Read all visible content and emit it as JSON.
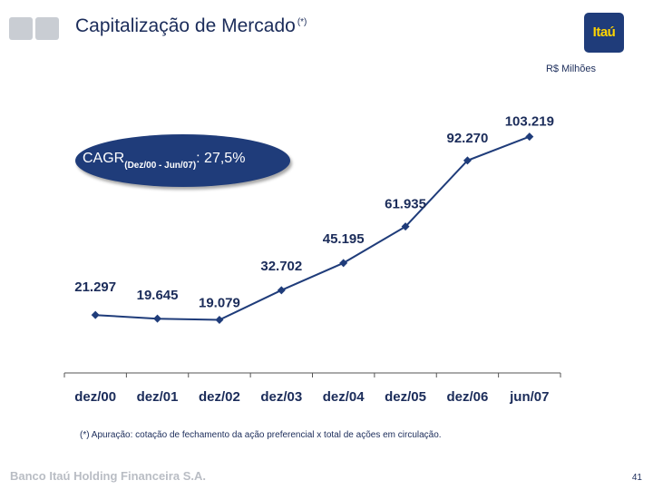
{
  "header": {
    "title": "Capitalização de Mercado",
    "title_note": "(*)",
    "logo_text": "Itaú"
  },
  "unit_label": "R$ Milhões",
  "cagr": {
    "label": "CAGR",
    "period": "(Dez/00 - Jun/07)",
    "value": ": 27,5%"
  },
  "chart_data": {
    "type": "line",
    "title": "",
    "xlabel": "",
    "ylabel": "",
    "categories": [
      "dez/00",
      "dez/01",
      "dez/02",
      "dez/03",
      "dez/04",
      "dez/05",
      "dez/06",
      "jun/07"
    ],
    "series": [
      {
        "name": "Capitalização de Mercado",
        "values": [
          21297,
          19645,
          19079,
          32702,
          45195,
          61935,
          92270,
          103219
        ],
        "labels": [
          "21.297",
          "19.645",
          "19.079",
          "32.702",
          "45.195",
          "61.935",
          "92.270",
          "103.219"
        ]
      }
    ],
    "ylim": [
      0,
      110000
    ],
    "grid": false,
    "colors": {
      "line": "#1f3c7a",
      "text": "#1b2c5a"
    }
  },
  "footnote": "(*) Apuração: cotação de fechamento da ação preferencial x total de ações em circulação.",
  "footer": {
    "company": "Banco Itaú Holding Financeira S.A.",
    "page": "41"
  }
}
